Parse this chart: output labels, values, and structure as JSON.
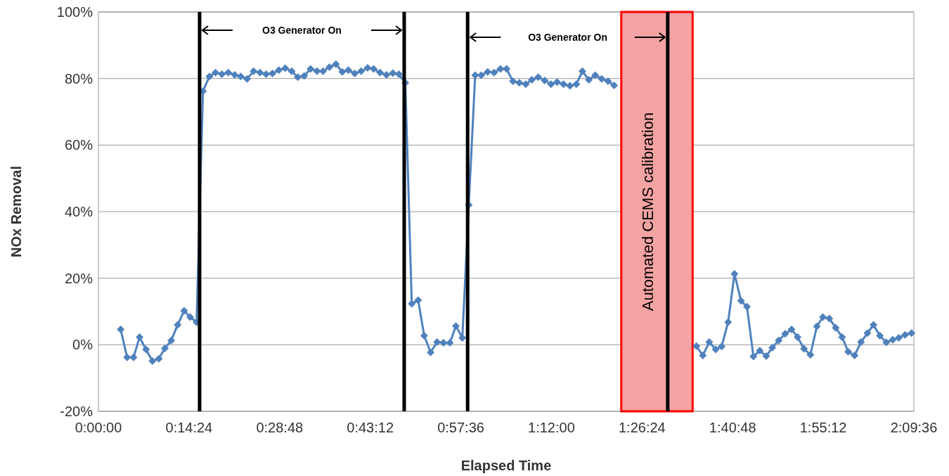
{
  "chart_data": {
    "type": "line",
    "xlabel": "Elapsed Time",
    "ylabel": "NOx Removal",
    "xlim": [
      0,
      2.16
    ],
    "xticks": [
      {
        "value": 0,
        "label": "0:00:00"
      },
      {
        "value": 0.24,
        "label": "0:14:24"
      },
      {
        "value": 0.48,
        "label": "0:28:48"
      },
      {
        "value": 0.72,
        "label": "0:43:12"
      },
      {
        "value": 0.96,
        "label": "0:57:36"
      },
      {
        "value": 1.2,
        "label": "1:12:00"
      },
      {
        "value": 1.44,
        "label": "1:26:24"
      },
      {
        "value": 1.68,
        "label": "1:40:48"
      },
      {
        "value": 1.92,
        "label": "1:55:12"
      },
      {
        "value": 2.16,
        "label": "2:09:36"
      }
    ],
    "ylim": [
      -20,
      100
    ],
    "yticks": [
      {
        "value": -20,
        "label": "-20%"
      },
      {
        "value": 0,
        "label": "0%"
      },
      {
        "value": 20,
        "label": "20%"
      },
      {
        "value": 40,
        "label": "40%"
      },
      {
        "value": 60,
        "label": "60%"
      },
      {
        "value": 80,
        "label": "80%"
      },
      {
        "value": 100,
        "label": "100%"
      }
    ],
    "grid": "y",
    "marker": "diamond",
    "line_style": "solid",
    "series": [
      {
        "color": "#4f81bd",
        "x": [
          0.059,
          0.076,
          0.093,
          0.109,
          0.126,
          0.143,
          0.16,
          0.176,
          0.193,
          0.21,
          0.227,
          0.243,
          0.26,
          0.277,
          0.294,
          0.31,
          0.327,
          0.344,
          0.361,
          0.377,
          0.394,
          0.411,
          0.428,
          0.444,
          0.461,
          0.478,
          0.495,
          0.512,
          0.528,
          0.545,
          0.562,
          0.579,
          0.595,
          0.612,
          0.629,
          0.646,
          0.662,
          0.679,
          0.696,
          0.713,
          0.729,
          0.746,
          0.763,
          0.78,
          0.796,
          0.813,
          0.83,
          0.847,
          0.863,
          0.88,
          0.897,
          0.914,
          0.931,
          0.947,
          0.964,
          0.981,
          0.998,
          1.014,
          1.031,
          1.048,
          1.065,
          1.081,
          1.098,
          1.115,
          1.132,
          1.148,
          1.165,
          1.182,
          1.199,
          1.215,
          1.232,
          1.249,
          1.266,
          1.282,
          1.299,
          1.316,
          1.333,
          1.35,
          1.366,
          1.383,
          1.584,
          1.601,
          1.618,
          1.635,
          1.651,
          1.668,
          1.685,
          1.702,
          1.718,
          1.735,
          1.752,
          1.769,
          1.785,
          1.802,
          1.819,
          1.836,
          1.852,
          1.869,
          1.886,
          1.903,
          1.919,
          1.936,
          1.953,
          1.97,
          1.986,
          2.003,
          2.02,
          2.037,
          2.053,
          2.07,
          2.087,
          2.104,
          2.12,
          2.137,
          2.154
        ],
        "values": [
          4.6,
          -3.8,
          -3.8,
          2.3,
          -1.4,
          -4.9,
          -4.2,
          -1.1,
          1.3,
          6.0,
          10.2,
          8.3,
          6.8,
          76.2,
          80.6,
          81.8,
          81.3,
          81.8,
          81.1,
          80.6,
          79.9,
          82.2,
          81.8,
          81.3,
          81.5,
          82.5,
          83.1,
          82.2,
          80.4,
          80.8,
          82.9,
          82.2,
          82.2,
          83.4,
          84.3,
          82.0,
          82.5,
          81.5,
          82.2,
          83.2,
          82.9,
          81.8,
          81.1,
          81.6,
          81.3,
          78.7,
          12.3,
          13.4,
          2.7,
          -2.3,
          0.8,
          0.6,
          0.6,
          5.6,
          2.1,
          42,
          81.0,
          81.0,
          82.0,
          81.8,
          82.9,
          82.9,
          79.2,
          78.7,
          78.3,
          79.6,
          80.4,
          79.4,
          78.3,
          78.9,
          78.3,
          77.8,
          78.3,
          82.2,
          79.6,
          81.0,
          79.9,
          79.2,
          77.9,
          null,
          -0.4,
          -3.2,
          0.8,
          -1.4,
          -0.5,
          6.8,
          21.3,
          13.2,
          11.4,
          -3.5,
          -1.8,
          -3.4,
          -0.9,
          1.3,
          3.3,
          4.6,
          2.3,
          -1.2,
          -3.0,
          5.5,
          8.3,
          7.9,
          5.1,
          2.3,
          -2.1,
          -3.2,
          0.8,
          3.5,
          6.0,
          2.7,
          0.7,
          1.5,
          2.1,
          3.0,
          3.5
        ]
      }
    ],
    "bands": [
      {
        "axis": "x",
        "from": 1.385,
        "to": 1.574,
        "label": "Automated CEMS calibration",
        "color": "#f4a3a3"
      }
    ],
    "ref_lines": [
      {
        "axis": "x",
        "value": 0.268,
        "color": "#000000"
      },
      {
        "axis": "x",
        "value": 0.81,
        "color": "#000000"
      },
      {
        "axis": "x",
        "value": 0.978,
        "color": "#000000"
      },
      {
        "axis": "x",
        "value": 1.508,
        "color": "#000000"
      }
    ],
    "annotations": [
      "O3 Generator On",
      "O3 Generator On"
    ]
  }
}
